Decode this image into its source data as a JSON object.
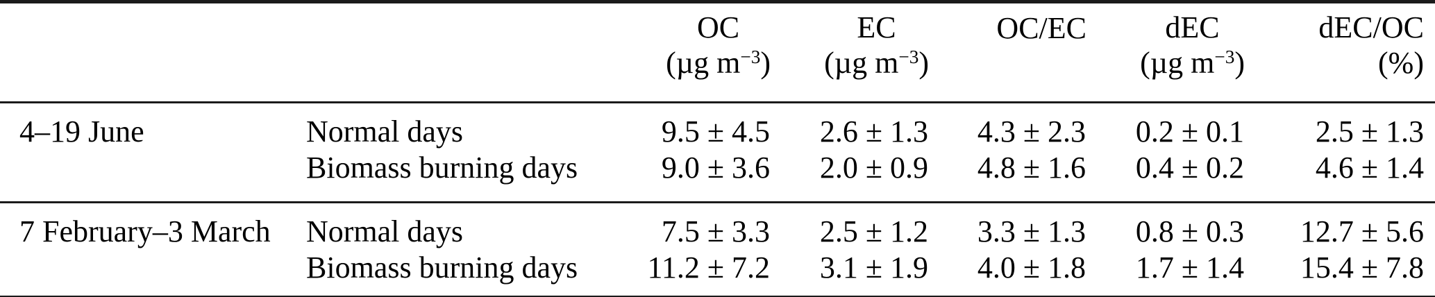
{
  "table": {
    "columns": [
      {
        "label": "",
        "unit_prefix": "",
        "unit_sup": "",
        "unit_suffix": ""
      },
      {
        "label": "",
        "unit_prefix": "",
        "unit_sup": "",
        "unit_suffix": ""
      },
      {
        "label": "OC",
        "unit_prefix": "(µg m",
        "unit_sup": "−3",
        "unit_suffix": ")"
      },
      {
        "label": "EC",
        "unit_prefix": "(µg m",
        "unit_sup": "−3",
        "unit_suffix": ")"
      },
      {
        "label": "OC/EC",
        "unit_prefix": "",
        "unit_sup": "",
        "unit_suffix": ""
      },
      {
        "label": "dEC",
        "unit_prefix": "(µg m",
        "unit_sup": "−3",
        "unit_suffix": ")"
      },
      {
        "label": "dEC/OC",
        "unit_prefix": "(%)",
        "unit_sup": "",
        "unit_suffix": ""
      }
    ],
    "groups": [
      {
        "period": "4–19 June",
        "rows": [
          {
            "day_type": "Normal days",
            "values": [
              "9.5 ± 4.5",
              "2.6 ± 1.3",
              "4.3 ± 2.3",
              "0.2 ± 0.1",
              "2.5 ± 1.3"
            ]
          },
          {
            "day_type": "Biomass burning days",
            "values": [
              "9.0 ± 3.6",
              "2.0 ± 0.9",
              "4.8 ± 1.6",
              "0.4 ± 0.2",
              "4.6 ± 1.4"
            ]
          }
        ]
      },
      {
        "period": "7 February–3 March",
        "rows": [
          {
            "day_type": "Normal days",
            "values": [
              "7.5 ± 3.3",
              "2.5 ± 1.2",
              "3.3 ± 1.3",
              "0.8 ± 0.3",
              "12.7 ± 5.6"
            ]
          },
          {
            "day_type": "Biomass burning days",
            "values": [
              "11.2 ± 7.2",
              "3.1 ± 1.9",
              "4.0 ± 1.8",
              "1.7 ± 1.4",
              "15.4 ± 7.8"
            ]
          }
        ]
      }
    ]
  }
}
